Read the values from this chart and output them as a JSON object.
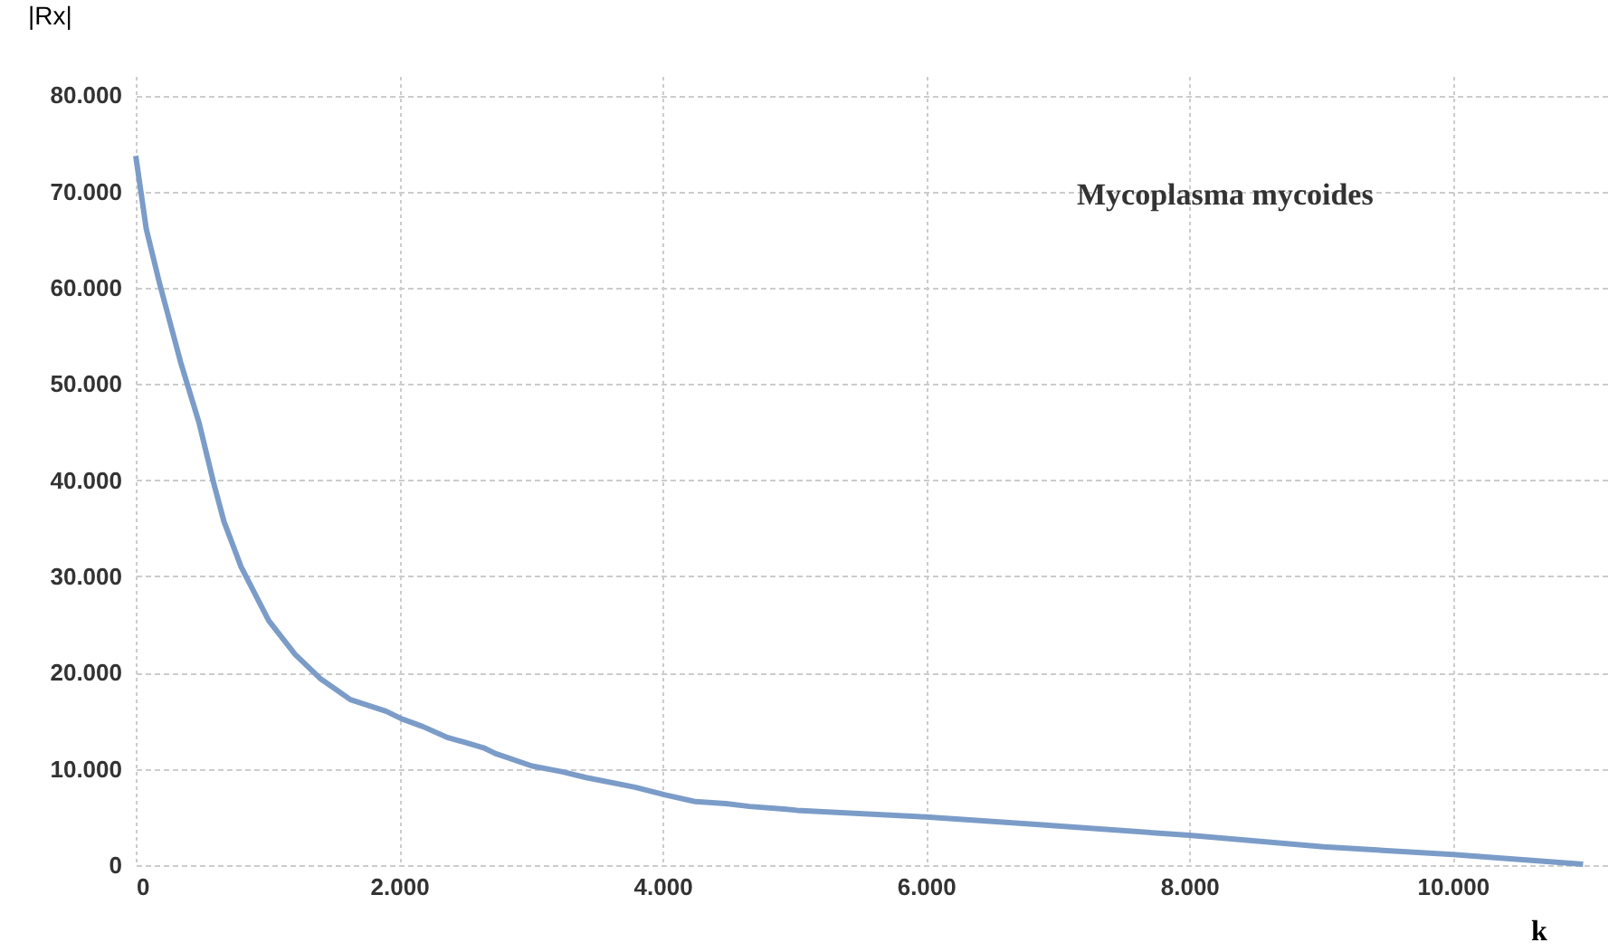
{
  "chart_data": {
    "type": "line",
    "xlabel": "k",
    "ylabel": "|Rx|",
    "annotations": [
      "Mycoplasma mycoides"
    ],
    "x": [
      0,
      80,
      180,
      340,
      480,
      590,
      670,
      800,
      1010,
      1210,
      1400,
      1630,
      1900,
      2020,
      2180,
      2360,
      2640,
      2730,
      3010,
      3240,
      3420,
      3790,
      4020,
      4250,
      4480,
      4660,
      4940,
      5020,
      6000,
      6860,
      8000,
      9020,
      10000,
      10990
    ],
    "series": [
      {
        "color": "#7b9cc8",
        "values": [
          73700,
          66100,
          60500,
          52300,
          46000,
          39800,
          35700,
          31000,
          25400,
          21900,
          19400,
          17200,
          16000,
          15200,
          14400,
          13300,
          12200,
          11600,
          10300,
          9700,
          9100,
          8100,
          7300,
          6600,
          6400,
          6100,
          5800,
          5700,
          5000,
          4200,
          3100,
          1900,
          1100,
          100
        ]
      }
    ],
    "xlim": [
      0,
      11200
    ],
    "ylim": [
      0,
      82000
    ],
    "xticks": [
      0,
      {
        "value": 2000,
        "label": "2.000"
      },
      {
        "value": 4000,
        "label": "4.000"
      },
      {
        "value": 6000,
        "label": "6.000"
      },
      {
        "value": 8000,
        "label": "8.000"
      },
      {
        "value": 10000,
        "label": "10.000"
      }
    ],
    "yticks": [
      0,
      {
        "value": 10000,
        "label": "10.000"
      },
      {
        "value": 20000,
        "label": "20.000"
      },
      {
        "value": 30000,
        "label": "30.000"
      },
      {
        "value": 40000,
        "label": "40.000"
      },
      {
        "value": 50000,
        "label": "50.000"
      },
      {
        "value": 60000,
        "label": "60.000"
      },
      {
        "value": 70000,
        "label": "70.000"
      },
      {
        "value": 80000,
        "label": "80.000"
      }
    ],
    "grid": true,
    "marker": "none",
    "line_style": "solid"
  }
}
